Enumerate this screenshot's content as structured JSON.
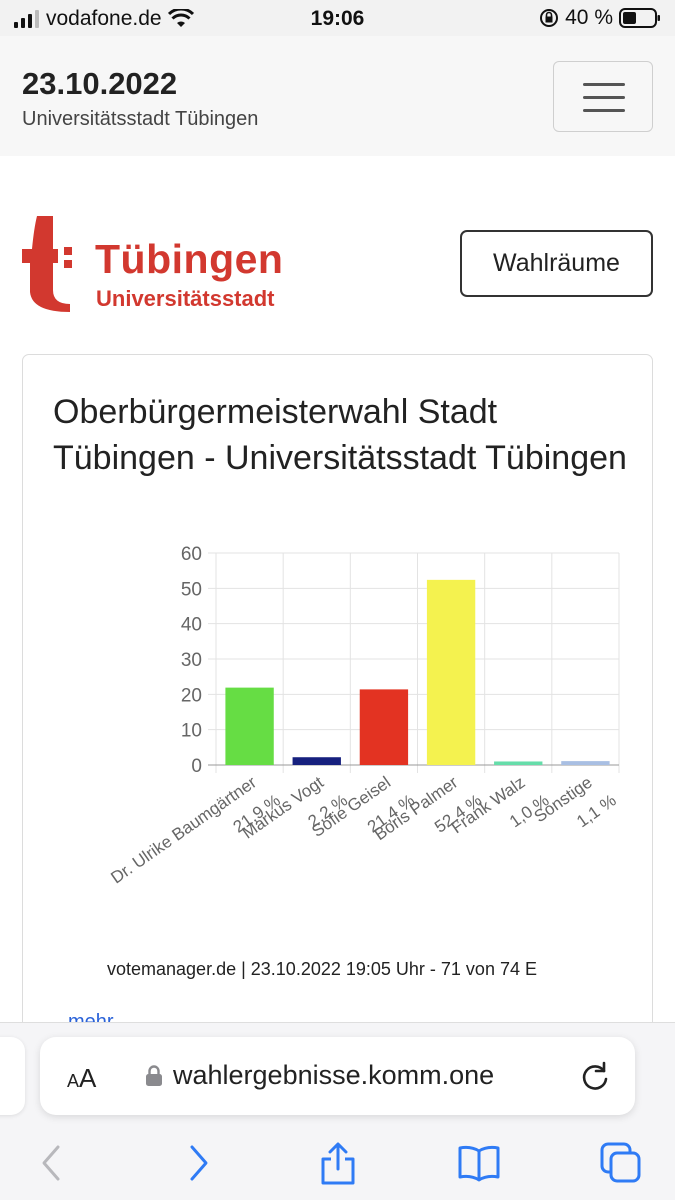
{
  "status_bar": {
    "carrier": "vodafone.de",
    "time": "19:06",
    "battery": "40 %"
  },
  "header": {
    "date": "23.10.2022",
    "subtitle": "Universitätsstadt Tübingen"
  },
  "logo": {
    "word": "Tübingen",
    "sub": "Universitätsstadt"
  },
  "wahlraeume_label": "Wahlräume",
  "card": {
    "title": "Oberbürgermeisterwahl Stadt Tübingen - Universitätsstadt Tübingen",
    "source": "votemanager.de | 23.10.2022 19:05 Uhr - 71 von 74 E",
    "more_link": "mehr"
  },
  "chart_data": {
    "type": "bar",
    "categories": [
      "Dr. Ulrike Baumgärtner",
      "Markus Vogt",
      "Sofie Geisel",
      "Boris Palmer",
      "Frank Walz",
      "Sonstige"
    ],
    "percent_labels": [
      "21,9 %",
      "2,2 %",
      "21,4 %",
      "52,4 %",
      "1,0 %",
      "1,1 %"
    ],
    "values": [
      21.9,
      2.2,
      21.4,
      52.4,
      1.0,
      1.1
    ],
    "colors": [
      "#66dd44",
      "#16207e",
      "#e33322",
      "#f4f24f",
      "#66ddaa",
      "#a9bfe3"
    ],
    "ylim": [
      0,
      60
    ],
    "yticks": [
      0,
      10,
      20,
      30,
      40,
      50,
      60
    ],
    "grid": true,
    "legend": "none"
  },
  "browser": {
    "aa_label": "AA",
    "url": "wahlergebnisse.komm.one"
  }
}
